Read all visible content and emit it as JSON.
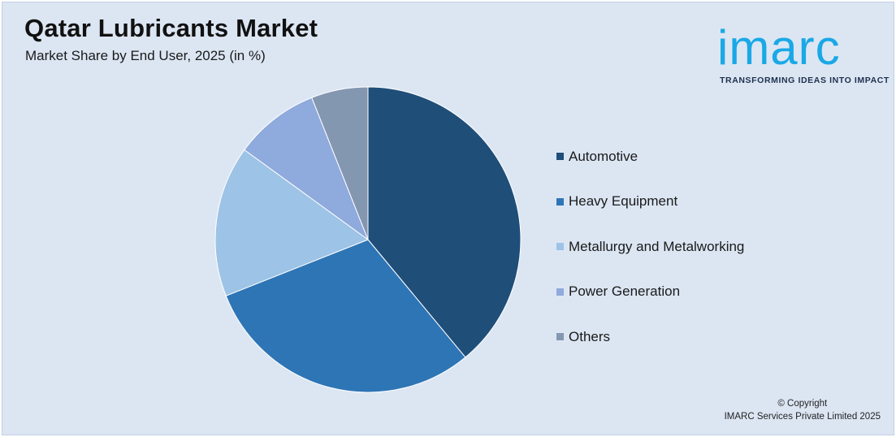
{
  "header": {
    "title": "Qatar Lubricants Market",
    "subtitle": "Market Share by End User, 2025 (in %)"
  },
  "logo": {
    "wordmark": "imarc",
    "tagline": "TRANSFORMING IDEAS INTO IMPACT",
    "color": "#1aa8e6"
  },
  "chart_data": {
    "type": "pie",
    "title": "Qatar Lubricants Market",
    "subtitle": "Market Share by End User, 2025 (in %)",
    "legend_position": "right",
    "series": [
      {
        "name": "Automotive",
        "value": 39,
        "color": "#1f4e79"
      },
      {
        "name": "Heavy Equipment",
        "value": 30,
        "color": "#2e75b6"
      },
      {
        "name": "Metallurgy and Metalworking",
        "value": 16,
        "color": "#9dc3e6"
      },
      {
        "name": "Power Generation",
        "value": 9,
        "color": "#8faadc"
      },
      {
        "name": "Others",
        "value": 6,
        "color": "#8497b0"
      }
    ]
  },
  "footer": {
    "copyright_line1": "© Copyright",
    "copyright_line2": "IMARC Services Private Limited 2025"
  }
}
